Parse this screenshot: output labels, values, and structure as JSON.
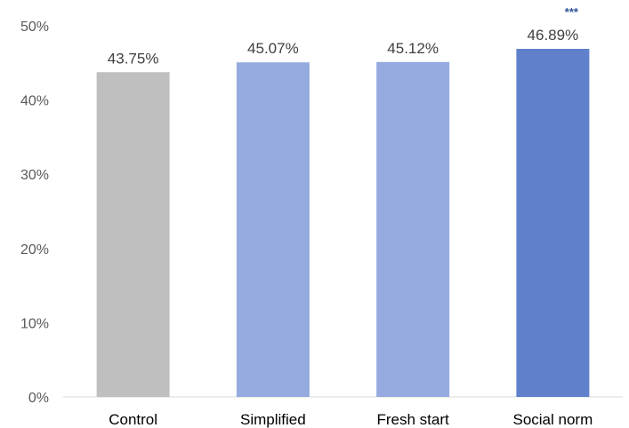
{
  "chart_data": {
    "type": "bar",
    "categories": [
      "Control",
      "Simplified",
      "Fresh start",
      "Social norm"
    ],
    "values": [
      43.75,
      45.07,
      45.12,
      46.89
    ],
    "data_labels": [
      "43.75%",
      "45.07%",
      "45.12%",
      "46.89%"
    ],
    "bar_colors": [
      "#bfbfbf",
      "#95abe0",
      "#95abe0",
      "#6080cc"
    ],
    "significance": [
      "",
      "",
      "",
      "***"
    ],
    "ylim": [
      0,
      50
    ],
    "yticks": [
      0,
      10,
      20,
      30,
      40,
      50
    ],
    "ytick_labels": [
      "0%",
      "10%",
      "20%",
      "30%",
      "40%",
      "50%"
    ],
    "grid": false,
    "title": "",
    "xlabel": "",
    "ylabel": ""
  }
}
